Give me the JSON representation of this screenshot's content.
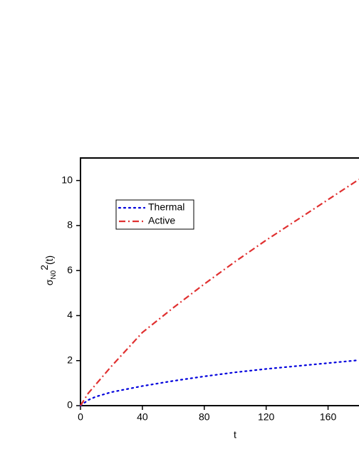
{
  "chart_data": {
    "type": "line",
    "xlabel": "t",
    "ylabel": {
      "symbol": "σ",
      "subscript": "N0",
      "superscript": "2",
      "suffix": "(t)"
    },
    "x": [
      0,
      5,
      10,
      20,
      40,
      60,
      80,
      100,
      120,
      140,
      160,
      180
    ],
    "series": [
      {
        "name": "Thermal",
        "color": "#0000dd",
        "style": "dotted",
        "values": [
          0,
          0.25,
          0.4,
          0.6,
          0.87,
          1.1,
          1.3,
          1.48,
          1.63,
          1.76,
          1.89,
          2.02
        ]
      },
      {
        "name": "Active",
        "color": "#e03030",
        "style": "dashdot",
        "values": [
          0,
          0.55,
          0.95,
          1.75,
          3.25,
          4.35,
          5.4,
          6.4,
          7.35,
          8.25,
          9.15,
          10.05
        ]
      }
    ],
    "xlim": [
      0,
      180
    ],
    "xticks": [
      0,
      40,
      80,
      120,
      160
    ],
    "ylim": [
      0,
      11
    ],
    "yticks": [
      0,
      2,
      4,
      6,
      8,
      10
    ],
    "legend": "upper left"
  }
}
